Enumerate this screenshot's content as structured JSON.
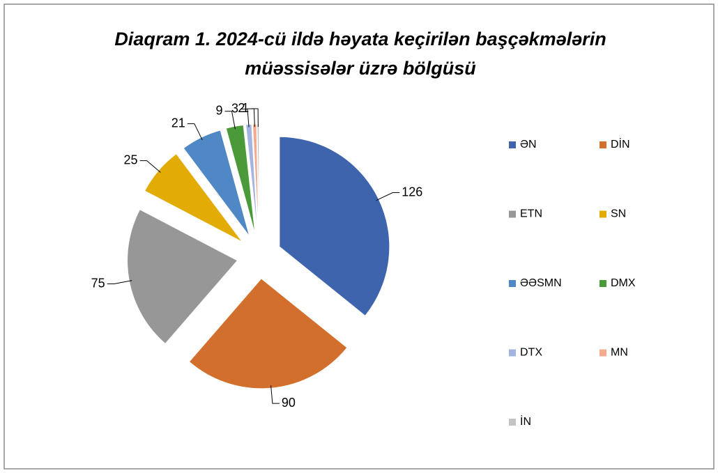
{
  "chart_data": {
    "type": "pie",
    "title": [
      "Diaqram 1. 2024-cü ildə həyata keçirilən başçəkmələrin",
      "müəssisələr üzrə bölgüsü"
    ],
    "categories": [
      "ƏN",
      "DİN",
      "ETN",
      "SN",
      "ƏƏSMN",
      "DMX",
      "DTX",
      "MN",
      "İN"
    ],
    "values": [
      126,
      90,
      75,
      25,
      21,
      9,
      3,
      2,
      1
    ],
    "colors": [
      "#3f64ae",
      "#d36f2c",
      "#979797",
      "#e2ac05",
      "#4f88c5",
      "#4a9a3a",
      "#a4b4e0",
      "#f4aa8c",
      "#c3c3c3"
    ],
    "legend": "right"
  }
}
